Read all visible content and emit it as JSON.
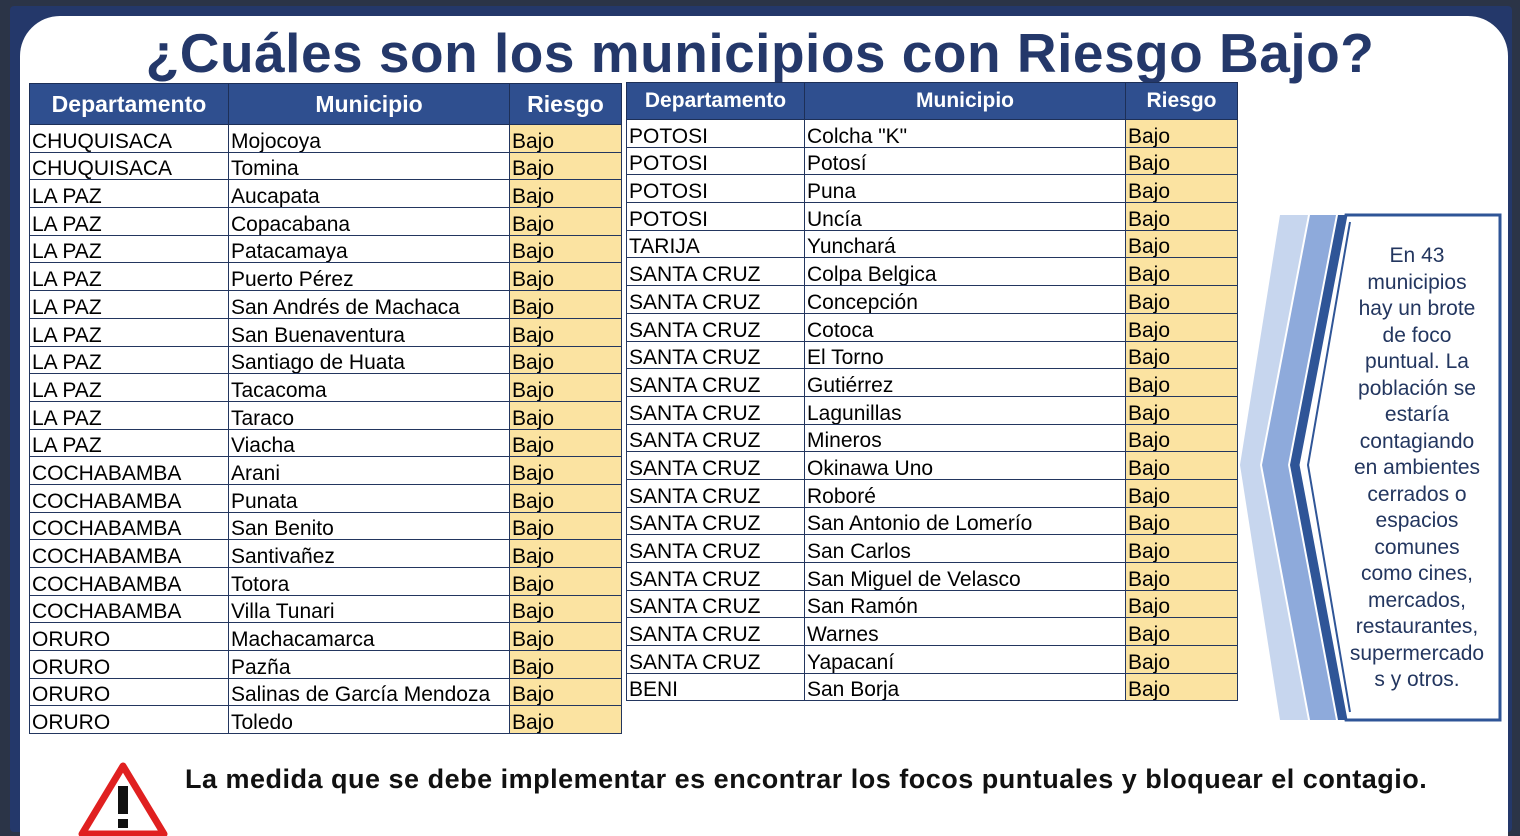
{
  "title": "¿Cuáles son los municipios con Riesgo Bajo?",
  "colors": {
    "header_bg": "#2f4f8f",
    "risk_bg": "#fbe3a1",
    "accent": "#24386a",
    "warning": "#e02020"
  },
  "table_left": {
    "headers": [
      "Departamento",
      "Municipio",
      "Riesgo"
    ],
    "rows": [
      [
        "CHUQUISACA",
        "Mojocoya",
        "Bajo"
      ],
      [
        "CHUQUISACA",
        "Tomina",
        "Bajo"
      ],
      [
        "LA PAZ",
        "Aucapata",
        "Bajo"
      ],
      [
        "LA PAZ",
        "Copacabana",
        "Bajo"
      ],
      [
        "LA PAZ",
        "Patacamaya",
        "Bajo"
      ],
      [
        "LA PAZ",
        "Puerto Pérez",
        "Bajo"
      ],
      [
        "LA PAZ",
        "San Andrés de Machaca",
        "Bajo"
      ],
      [
        "LA PAZ",
        "San Buenaventura",
        "Bajo"
      ],
      [
        "LA PAZ",
        "Santiago de Huata",
        "Bajo"
      ],
      [
        "LA PAZ",
        "Tacacoma",
        "Bajo"
      ],
      [
        "LA PAZ",
        "Taraco",
        "Bajo"
      ],
      [
        "LA PAZ",
        "Viacha",
        "Bajo"
      ],
      [
        "COCHABAMBA",
        "Arani",
        "Bajo"
      ],
      [
        "COCHABAMBA",
        "Punata",
        "Bajo"
      ],
      [
        "COCHABAMBA",
        "San Benito",
        "Bajo"
      ],
      [
        "COCHABAMBA",
        "Santivañez",
        "Bajo"
      ],
      [
        "COCHABAMBA",
        "Totora",
        "Bajo"
      ],
      [
        "COCHABAMBA",
        "Villa Tunari",
        "Bajo"
      ],
      [
        "ORURO",
        "Machacamarca",
        "Bajo"
      ],
      [
        "ORURO",
        "Pazña",
        "Bajo"
      ],
      [
        "ORURO",
        "Salinas de García Mendoza",
        "Bajo"
      ],
      [
        "ORURO",
        "Toledo",
        "Bajo"
      ]
    ]
  },
  "table_right": {
    "headers": [
      "Departamento",
      "Municipio",
      "Riesgo"
    ],
    "rows": [
      [
        "POTOSI",
        "Colcha \"K\"",
        "Bajo"
      ],
      [
        "POTOSI",
        "Potosí",
        "Bajo"
      ],
      [
        "POTOSI",
        "Puna",
        "Bajo"
      ],
      [
        "POTOSI",
        "Uncía",
        "Bajo"
      ],
      [
        "TARIJA",
        "Yunchará",
        "Bajo"
      ],
      [
        "SANTA CRUZ",
        "Colpa Belgica",
        "Bajo"
      ],
      [
        "SANTA CRUZ",
        "Concepción",
        "Bajo"
      ],
      [
        "SANTA CRUZ",
        "Cotoca",
        "Bajo"
      ],
      [
        "SANTA CRUZ",
        "El Torno",
        "Bajo"
      ],
      [
        "SANTA CRUZ",
        "Gutiérrez",
        "Bajo"
      ],
      [
        "SANTA CRUZ",
        "Lagunillas",
        "Bajo"
      ],
      [
        "SANTA CRUZ",
        "Mineros",
        "Bajo"
      ],
      [
        "SANTA CRUZ",
        "Okinawa Uno",
        "Bajo"
      ],
      [
        "SANTA CRUZ",
        "Roboré",
        "Bajo"
      ],
      [
        "SANTA CRUZ",
        "San Antonio de Lomerío",
        "Bajo"
      ],
      [
        "SANTA CRUZ",
        "San Carlos",
        "Bajo"
      ],
      [
        "SANTA CRUZ",
        "San Miguel de Velasco",
        "Bajo"
      ],
      [
        "SANTA CRUZ",
        "San Ramón",
        "Bajo"
      ],
      [
        "SANTA CRUZ",
        "Warnes",
        "Bajo"
      ],
      [
        "SANTA CRUZ",
        "Yapacaní",
        "Bajo"
      ],
      [
        "BENI",
        "San Borja",
        "Bajo"
      ]
    ]
  },
  "note_lines": [
    "En 43",
    "municipios",
    "hay un brote",
    "de foco",
    "puntual. La",
    "población se",
    "estaría",
    "contagiando",
    "en ambientes",
    "cerrados o",
    "espacios",
    "comunes",
    "como cines,",
    "mercados,",
    "restaurantes,",
    "supermercado",
    "s y otros."
  ],
  "footer_text": "La medida que se debe implementar es encontrar los focos puntuales y bloquear el contagio.",
  "icons": {
    "warning": "warning-triangle-icon",
    "arrows": "chevron-arrows-icon"
  }
}
